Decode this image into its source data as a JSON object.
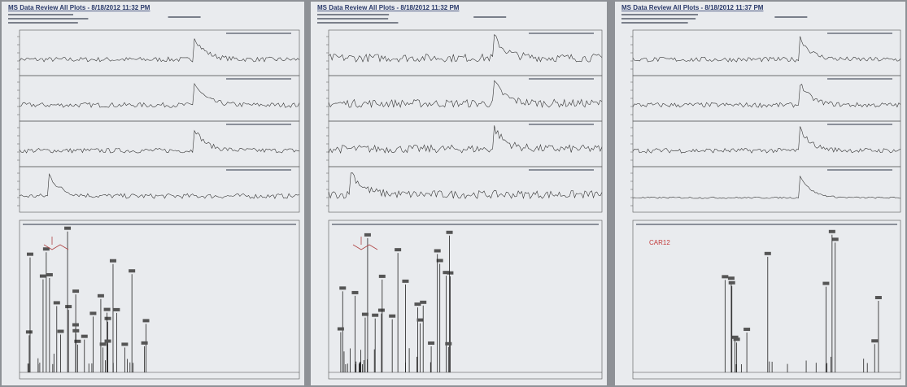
{
  "pages": [
    {
      "title": "MS Data Review All Plots - 8/18/2012 11:32 PM"
    },
    {
      "title": "MS Data Review All Plots - 8/18/2012 11:32 PM"
    },
    {
      "title": "MS Data Review All Plots - 8/18/2012 11:37 PM",
      "annotation": "CAR12"
    }
  ]
}
